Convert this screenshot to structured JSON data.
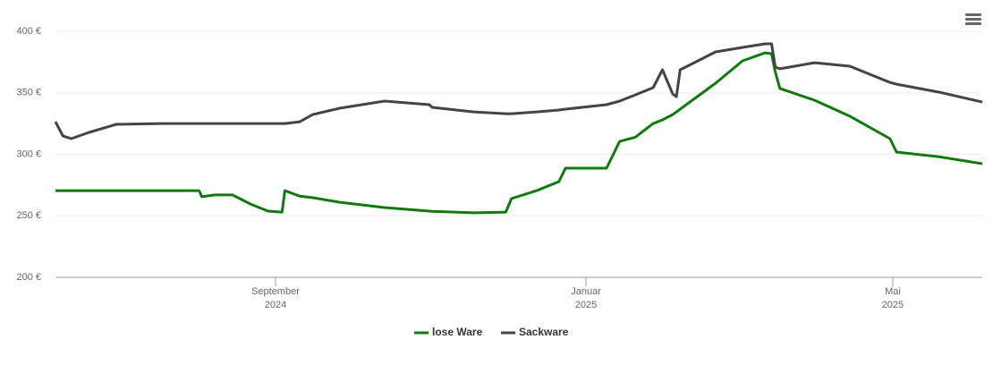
{
  "chart_data": {
    "type": "line",
    "x": [
      2024.431,
      2024.439,
      2024.448,
      2024.467,
      2024.496,
      2024.544,
      2024.585,
      2024.588,
      2024.602,
      2024.621,
      2024.64,
      2024.659,
      2024.674,
      2024.677,
      2024.693,
      2024.707,
      2024.736,
      2024.784,
      2024.832,
      2024.835,
      2024.88,
      2024.914,
      2024.92,
      2024.947,
      2024.971,
      2024.978,
      2025.022,
      2025.036,
      2025.053,
      2025.072,
      2025.082,
      2025.093,
      2025.097,
      2025.101,
      2025.139,
      2025.168,
      2025.192,
      2025.199,
      2025.203,
      2025.208,
      2025.245,
      2025.283,
      2025.326,
      2025.333,
      2025.379,
      2025.425
    ],
    "series": [
      {
        "name": "lose Ware",
        "color": "#0f7a0f",
        "values": [
          270.5,
          270.5,
          270.5,
          270.5,
          270.5,
          270.5,
          270.5,
          265.5,
          267,
          267,
          259.6,
          253.8,
          253,
          270.5,
          266,
          264.7,
          261,
          256.7,
          253.8,
          253.6,
          252.4,
          253,
          264,
          270.5,
          277.8,
          288.7,
          288.7,
          310.5,
          314,
          325,
          328,
          332.4,
          334.5,
          336.7,
          357.8,
          376,
          382.5,
          381.8,
          367,
          353.5,
          344,
          331,
          312.7,
          301.8,
          298,
          292.4
        ]
      },
      {
        "name": "Sackware",
        "color": "#444444",
        "values": [
          326.5,
          315,
          312.7,
          317.8,
          324.4,
          325,
          325,
          325,
          325,
          325,
          325,
          325,
          325,
          325,
          326.5,
          332.4,
          337.5,
          343.3,
          340.4,
          338.2,
          334.5,
          333,
          333,
          334.5,
          336,
          336.7,
          340.4,
          343.3,
          348.4,
          354.2,
          368.7,
          349,
          346.9,
          368.7,
          383.3,
          386.9,
          389.8,
          389.8,
          370.9,
          369.5,
          374.5,
          371.6,
          358.5,
          357,
          350.5,
          342.5
        ]
      }
    ],
    "xlim": [
      2024.431,
      2025.425
    ],
    "xticks": [
      {
        "value": 2024.667,
        "label": [
          "September",
          "2024"
        ]
      },
      {
        "value": 2025.0,
        "label": [
          "Januar",
          "2025"
        ]
      },
      {
        "value": 2025.329,
        "label": [
          "Mai",
          "2025"
        ]
      }
    ],
    "ylim": [
      200,
      400
    ],
    "yticks": [
      {
        "value": 200,
        "label": "200 €"
      },
      {
        "value": 250,
        "label": "250 €"
      },
      {
        "value": 300,
        "label": "300 €"
      },
      {
        "value": 350,
        "label": "350 €"
      },
      {
        "value": 400,
        "label": "400 €"
      }
    ],
    "grid": true
  }
}
